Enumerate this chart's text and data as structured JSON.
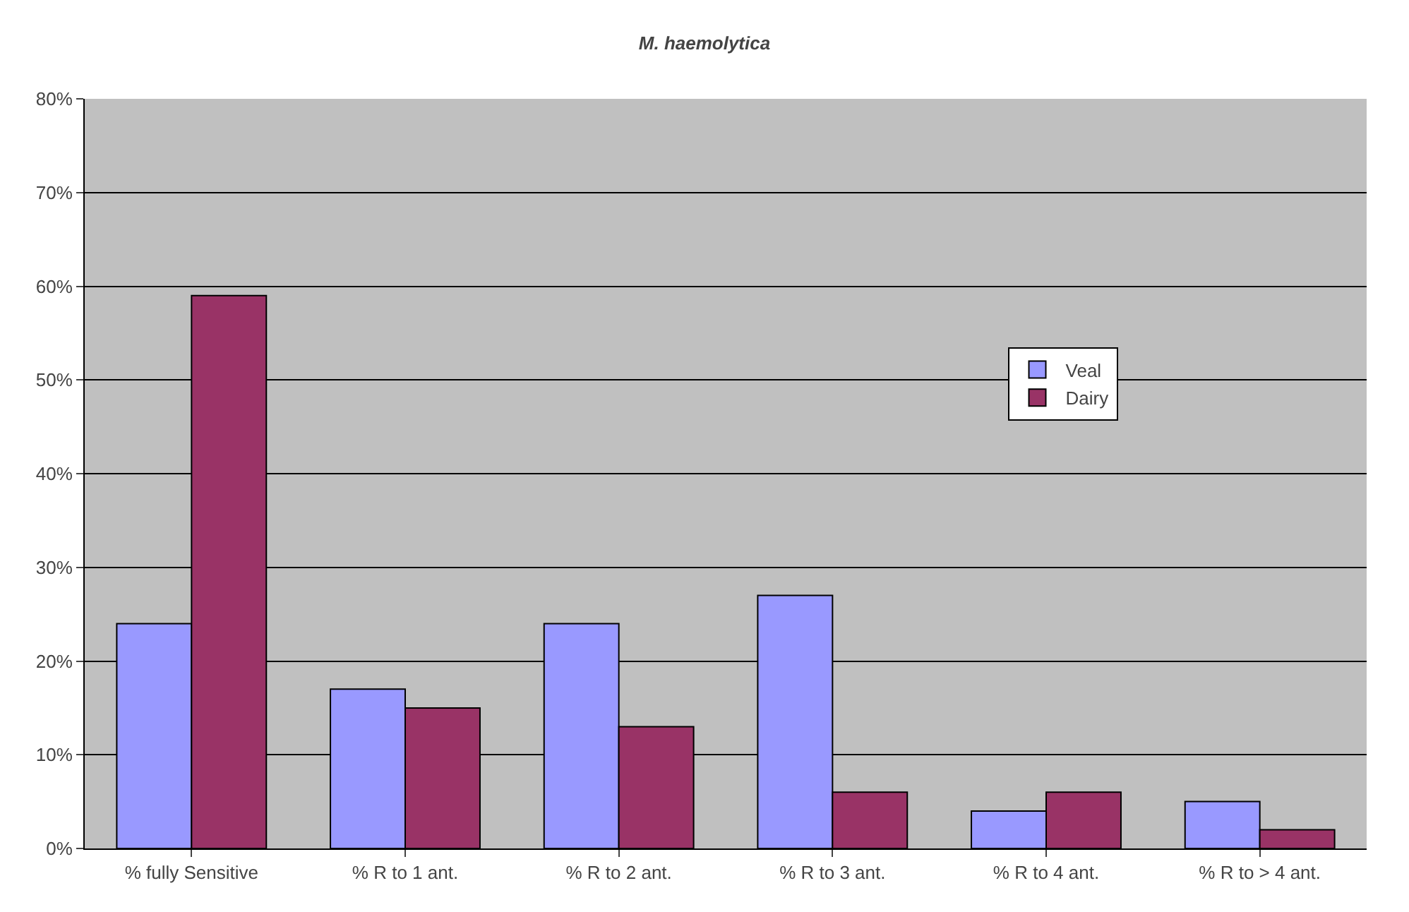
{
  "chart_data": {
    "type": "bar",
    "title": "M. haemolytica",
    "categories": [
      "% fully Sensitive",
      "% R to 1 ant.",
      "% R to 2 ant.",
      "% R to 3 ant.",
      "% R to 4 ant.",
      "% R to > 4 ant."
    ],
    "series": [
      {
        "name": "Veal",
        "color": "#9999ff",
        "values": [
          24,
          17,
          24,
          27,
          4,
          5
        ]
      },
      {
        "name": "Dairy",
        "color": "#993366",
        "values": [
          59,
          15,
          13,
          6,
          6,
          2
        ]
      }
    ],
    "ylim": [
      0,
      80
    ],
    "yticks": [
      {
        "value": 0,
        "label": "0%"
      },
      {
        "value": 10,
        "label": "10%"
      },
      {
        "value": 20,
        "label": "20%"
      },
      {
        "value": 30,
        "label": "30%"
      },
      {
        "value": 40,
        "label": "40%"
      },
      {
        "value": 50,
        "label": "50%"
      },
      {
        "value": 60,
        "label": "60%"
      },
      {
        "value": 70,
        "label": "70%"
      },
      {
        "value": 80,
        "label": "80%"
      }
    ],
    "grid": "y",
    "legend": "right"
  }
}
